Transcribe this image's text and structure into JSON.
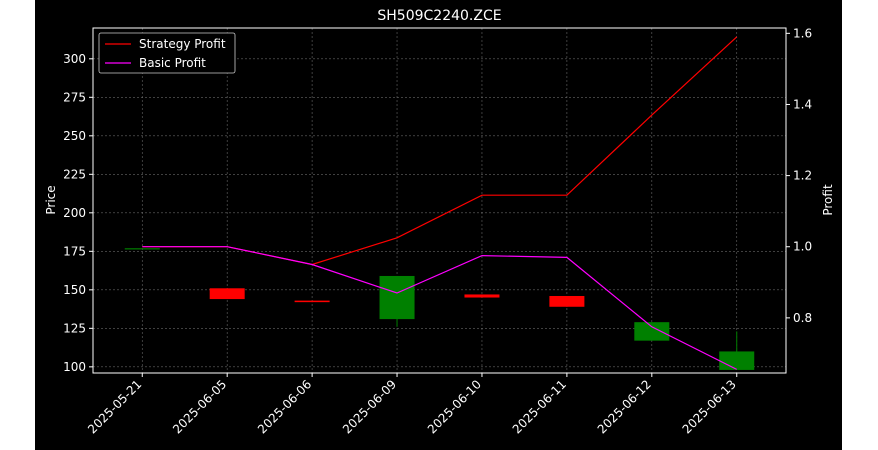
{
  "chart_data": {
    "type": "candlestick",
    "title": "SH509C2240.ZCE",
    "xlabel": "",
    "ylabel": "Price",
    "y2label": "Profit",
    "categories": [
      "2025-05-21",
      "2025-06-05",
      "2025-06-06",
      "2025-06-09",
      "2025-06-10",
      "2025-06-11",
      "2025-06-12",
      "2025-06-13"
    ],
    "ylim": [
      96,
      320
    ],
    "y2lim": [
      0.645,
      1.615
    ],
    "yticks": [
      100,
      125,
      150,
      175,
      200,
      225,
      250,
      275,
      300
    ],
    "y2ticks": [
      0.8,
      1.0,
      1.2,
      1.4,
      1.6
    ],
    "candles": [
      {
        "date": "2025-05-21",
        "open": 177,
        "high": 177,
        "low": 177,
        "close": 177
      },
      {
        "date": "2025-06-05",
        "open": 151,
        "high": 151,
        "low": 144,
        "close": 144
      },
      {
        "date": "2025-06-06",
        "open": 143,
        "high": 143,
        "low": 142,
        "close": 142
      },
      {
        "date": "2025-06-09",
        "open": 131,
        "high": 159,
        "low": 126,
        "close": 159
      },
      {
        "date": "2025-06-10",
        "open": 147,
        "high": 147,
        "low": 145,
        "close": 145
      },
      {
        "date": "2025-06-11",
        "open": 146,
        "high": 146,
        "low": 139,
        "close": 139
      },
      {
        "date": "2025-06-12",
        "open": 117,
        "high": 129,
        "low": 117,
        "close": 129
      },
      {
        "date": "2025-06-13",
        "open": 98,
        "high": 123,
        "low": 98,
        "close": 110
      }
    ],
    "series": [
      {
        "name": "Strategy Profit",
        "color": "#ff0000",
        "axis": "right",
        "values": [
          1.0,
          1.0,
          0.95,
          1.025,
          1.145,
          1.145,
          1.37,
          1.59
        ]
      },
      {
        "name": "Basic Profit",
        "color": "#ff00ff",
        "axis": "right",
        "values": [
          1.0,
          1.0,
          0.95,
          0.87,
          0.975,
          0.97,
          0.775,
          0.655
        ]
      }
    ],
    "colors": {
      "up": "#008000",
      "down": "#ff0000",
      "background": "#000000",
      "figure_background": "#ffffff",
      "text": "#ffffff",
      "grid": "#808080"
    },
    "grid": true,
    "legend_position": "top-left"
  }
}
